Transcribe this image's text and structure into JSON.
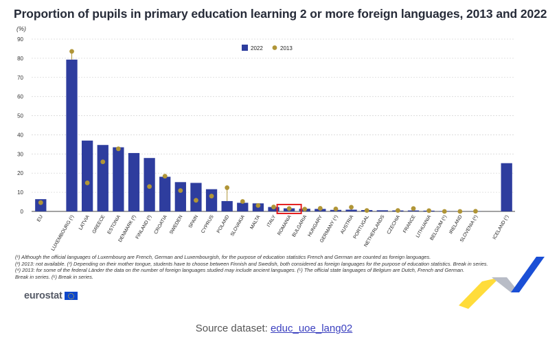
{
  "title": "Proportion of pupils in primary education learning 2 or more foreign languages, 2013 and 2022",
  "unit": "(%)",
  "chart_data": {
    "type": "bar",
    "ylim": [
      0,
      90
    ],
    "yticks": [
      0,
      10,
      20,
      30,
      40,
      50,
      60,
      70,
      80,
      90
    ],
    "grid": true,
    "legend_position": "top-center",
    "highlight_category": "ROMANIA",
    "highlight_color": "#e41e1e",
    "categories": [
      "EU",
      "LUXEMBOURG (¹)",
      "LATVIA",
      "GREECE",
      "ESTONIA",
      "DENMARK (²)",
      "FINLAND (³)",
      "CROATIA",
      "SWEDEN",
      "SPAIN",
      "CYPRUS",
      "POLAND",
      "SLOVAKIA",
      "MALTA",
      "ITALY",
      "ROMANIA",
      "BULGARIA",
      "HUNGARY",
      "GERMANY (⁴)",
      "AUSTRIA",
      "PORTUGAL",
      "NETHERLANDS",
      "CZECHIA",
      "FRANCE",
      "LITHUANIA",
      "BELGIUM (⁵)",
      "IRELAND",
      "SLOVENIA (⁶)",
      "ICELAND (⁷)"
    ],
    "gap_before": [
      1,
      28
    ],
    "series": [
      {
        "name": "2022",
        "mark": "bar",
        "color": "#2e3d9e",
        "values": [
          6.4,
          79.3,
          37.0,
          34.7,
          33.5,
          30.5,
          27.9,
          18.1,
          15.3,
          14.9,
          11.6,
          5.4,
          4.5,
          4.2,
          2.3,
          1.6,
          1.4,
          1.3,
          0.8,
          0.9,
          0.7,
          0.6,
          0.5,
          0.5,
          0.4,
          0.2,
          0.1,
          0.1,
          25.2
        ]
      },
      {
        "name": "2013",
        "mark": "point",
        "color": "#b09537",
        "values": [
          4.6,
          83.6,
          14.9,
          25.9,
          32.7,
          null,
          13.0,
          18.4,
          10.9,
          5.8,
          8.0,
          12.4,
          5.2,
          3.1,
          2.3,
          1.5,
          1.2,
          1.6,
          1.3,
          2.2,
          0.5,
          null,
          0.5,
          1.5,
          0.4,
          0.0,
          0.0,
          0.1,
          null
        ]
      }
    ]
  },
  "footnotes": [
    "(¹) Although the official languages of Luxembourg are French, German and Luxembourgish, for the purpose of education statistics French and German are counted as foreign languages.",
    "(²) 2013: not available. (³) Depending on their mother tongue, students have to choose between Finnish and Swedish, both considered as foreign languages for the purpose of education statistics. Break in series.",
    "(⁴) 2013: for some of the federal Länder the data on the number of foreign languages studied may include ancient languages. (⁵) The official state languages of Belgium are Dutch, French and German.",
    "Break in series. (⁶) Break in series."
  ],
  "logo": {
    "text": "eurostat"
  },
  "source": {
    "label": "Source dataset: ",
    "link": "educ_uoe_lang02"
  }
}
